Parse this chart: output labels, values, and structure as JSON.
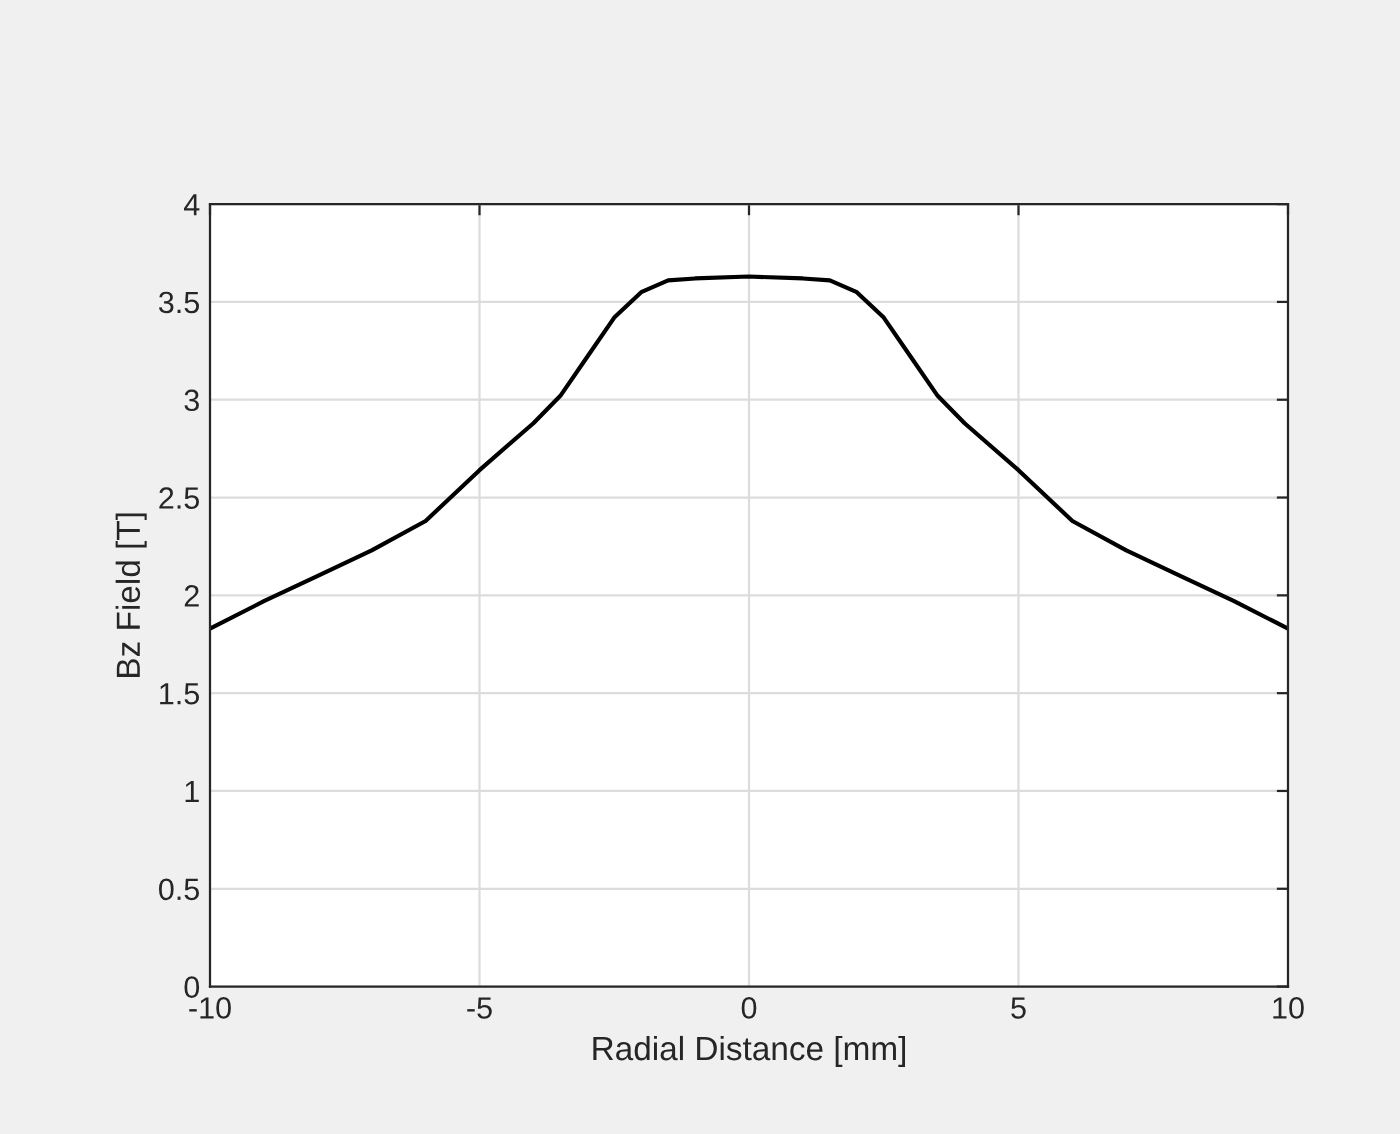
{
  "chart_data": {
    "type": "line",
    "xlabel": "Radial Distance [mm]",
    "ylabel": "Bz Field [T]",
    "series": [
      {
        "color": "#000000",
        "x": [
          -10,
          -9,
          -8,
          -7,
          -6,
          -5,
          -4,
          -3.5,
          -3,
          -2.5,
          -2,
          -1.5,
          -1,
          0,
          1,
          1.5,
          2,
          2.5,
          3,
          3.5,
          4,
          5,
          6,
          7,
          8,
          9,
          10
        ],
        "values": [
          1.83,
          1.97,
          2.1,
          2.23,
          2.38,
          2.64,
          2.88,
          3.02,
          3.22,
          3.42,
          3.55,
          3.61,
          3.62,
          3.63,
          3.62,
          3.61,
          3.55,
          3.42,
          3.22,
          3.02,
          2.88,
          2.64,
          2.38,
          2.23,
          2.1,
          1.97,
          1.83
        ]
      }
    ],
    "xlim": [
      -10,
      10
    ],
    "xticks": [
      -10,
      -5,
      0,
      5,
      10
    ],
    "ylim": [
      0,
      4
    ],
    "yticks": [
      0,
      0.5,
      1,
      1.5,
      2,
      2.5,
      3,
      3.5,
      4
    ],
    "grid": true,
    "line_style": "solid"
  }
}
